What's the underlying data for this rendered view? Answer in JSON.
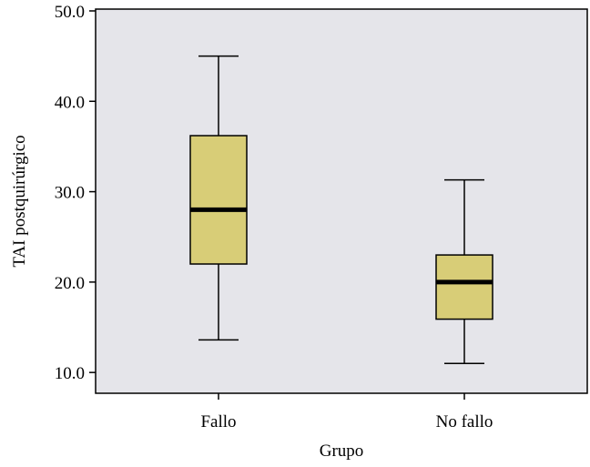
{
  "chart_data": {
    "type": "boxplot",
    "xlabel": "Grupo",
    "ylabel": "TAI postquirúrgico",
    "ylim": [
      7.7,
      50.2
    ],
    "yticks": [
      10,
      20,
      30,
      40,
      50
    ],
    "ytick_labels": [
      "10.0",
      "20.0",
      "30.0",
      "40.0",
      "50.0"
    ],
    "grid": false,
    "categories": [
      "Fallo",
      "No fallo"
    ],
    "boxes": [
      {
        "category": "Fallo",
        "whisker_low": 13.6,
        "q1": 22.0,
        "median": 28.0,
        "q3": 36.2,
        "whisker_high": 45.0
      },
      {
        "category": "No fallo",
        "whisker_low": 11.0,
        "q1": 15.9,
        "median": 20.0,
        "q3": 23.0,
        "whisker_high": 31.3
      }
    ],
    "colors": {
      "plot_background": "#e5e5ea",
      "box_fill": "#d8cd77",
      "stroke": "#000000"
    }
  }
}
